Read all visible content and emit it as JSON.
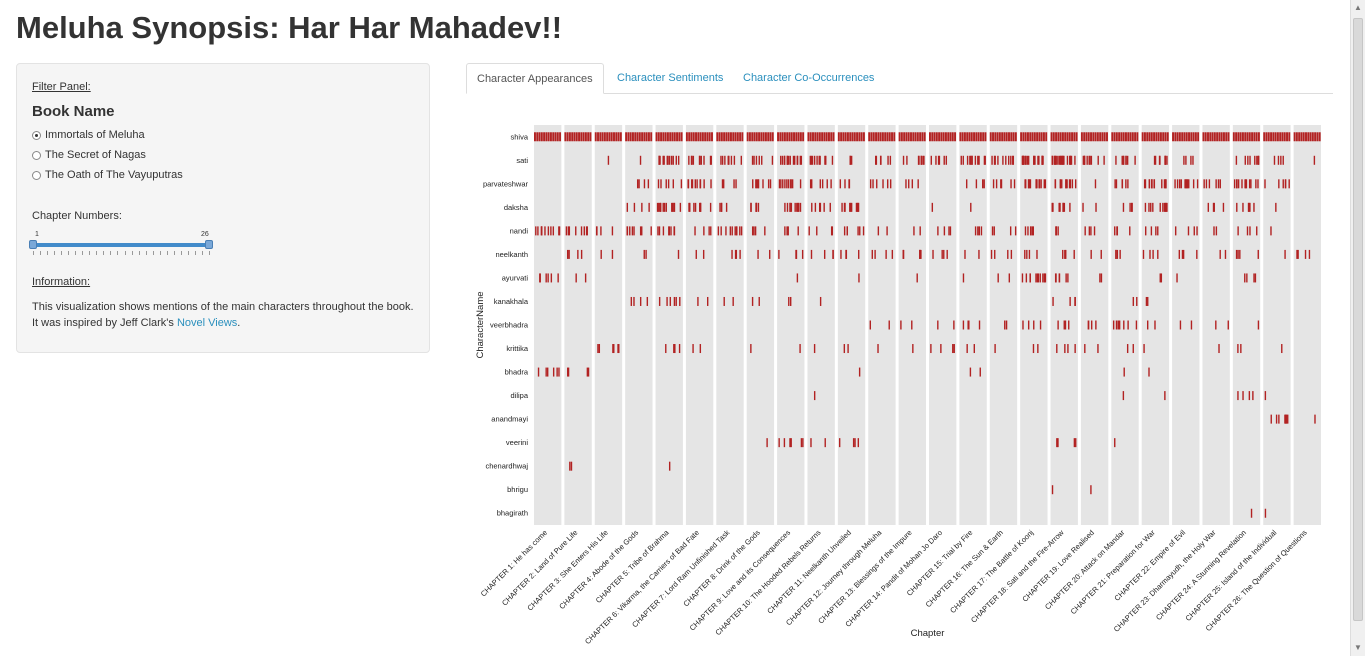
{
  "title": "Meluha Synopsis: Har Har Mahadev!!",
  "panel": {
    "filter_label": "Filter Panel:",
    "book_heading": "Book Name",
    "books": [
      "Immortals of Meluha",
      "The Secret of Nagas",
      "The Oath of The Vayuputras"
    ],
    "selected_book": 0,
    "chapter_label": "Chapter Numbers:",
    "slider_min": "1",
    "slider_max": "26",
    "info_label": "Information:",
    "info_text": "This visualization shows mentions of the main characters throughout the book. It was inspired by Jeff Clark's ",
    "info_link": "Novel Views",
    "info_end": "."
  },
  "tabs": [
    "Character Appearances",
    "Character Sentiments",
    "Character Co-Occurrences"
  ],
  "active_tab": 0,
  "colors": {
    "mark": "#b22222",
    "panel_bg": "#e5e5e5",
    "accent": "#2a8fbd"
  },
  "chart_data": {
    "type": "heatmap",
    "xlabel": "Chapter",
    "ylabel": "CharacterName",
    "characters": [
      "shiva",
      "sati",
      "parvateshwar",
      "daksha",
      "nandi",
      "neelkanth",
      "ayurvati",
      "kanakhala",
      "veerbhadra",
      "krittika",
      "bhadra",
      "dilipa",
      "anandmayi",
      "veerini",
      "chenardhwaj",
      "bhrigu",
      "bhagirath"
    ],
    "chapters": [
      "CHAPTER 1: He has come",
      "CHAPTER 2: Land of Pure Life",
      "CHAPTER 3: She Enters His Life",
      "CHAPTER 4: Abode of the Gods",
      "CHAPTER 5: Tribe of Brahma",
      "CHAPTER 6: Vikarma, the Carriers of Bad Fate",
      "CHAPTER 7: Lord Ram Unfinished Task",
      "CHAPTER 8: Drink of the Gods",
      "CHAPTER 9: Love and its Consequences",
      "CHAPTER 10: The Hooded Rebels Returns",
      "CHAPTER 11: Neelkanth Unveiled",
      "CHAPTER 12: Journey through Meluha",
      "CHAPTER 13: Blessings of the Impure",
      "CHAPTER 14: Pandit of Mohan Jo Daro",
      "CHAPTER 15: Trial by Fire",
      "CHAPTER 16: The Sun & Earth",
      "CHAPTER 17: The Battle of Koonj",
      "CHAPTER 18: Sati and the Fire-Arrow",
      "CHAPTER 19: Love Realised",
      "CHAPTER 20: Attack on Mandar",
      "CHAPTER 21: Preparation for War",
      "CHAPTER 22: Empire of Evil",
      "CHAPTER 23: Dharmayudh, the Holy War",
      "CHAPTER 24: A Stunning Revelation",
      "CHAPTER 25: Island of the Individual",
      "CHAPTER 26: The Question of Questions"
    ],
    "mentions": {
      "shiva": [
        [
          0,
          30,
          "dense"
        ],
        [
          1,
          22,
          "dense"
        ],
        [
          2,
          20,
          "dense"
        ],
        [
          3,
          18,
          "dense"
        ],
        [
          4,
          18,
          "dense"
        ],
        [
          5,
          25,
          "dense"
        ],
        [
          6,
          20,
          "dense"
        ],
        [
          7,
          12,
          "dense"
        ],
        [
          8,
          18,
          "dense"
        ],
        [
          9,
          14,
          "dense"
        ],
        [
          10,
          10,
          "dense"
        ],
        [
          11,
          20,
          "dense"
        ],
        [
          12,
          18,
          "dense"
        ],
        [
          13,
          14,
          "dense"
        ],
        [
          14,
          18,
          "dense"
        ],
        [
          15,
          12,
          "dense"
        ],
        [
          16,
          20,
          "dense"
        ],
        [
          17,
          22,
          "dense"
        ],
        [
          18,
          16,
          "dense"
        ],
        [
          19,
          18,
          "dense"
        ],
        [
          20,
          14,
          "dense"
        ],
        [
          21,
          20,
          "dense"
        ],
        [
          22,
          16,
          "dense"
        ],
        [
          23,
          12,
          "dense"
        ],
        [
          24,
          8,
          "dense"
        ],
        [
          25,
          18,
          "dense"
        ]
      ],
      "sati": [
        [
          2,
          1
        ],
        [
          3,
          1
        ],
        [
          4,
          12
        ],
        [
          5,
          10
        ],
        [
          6,
          8
        ],
        [
          7,
          6
        ],
        [
          8,
          14
        ],
        [
          9,
          10
        ],
        [
          10,
          3
        ],
        [
          11,
          6
        ],
        [
          12,
          8
        ],
        [
          13,
          6
        ],
        [
          14,
          12
        ],
        [
          15,
          10
        ],
        [
          16,
          18
        ],
        [
          17,
          20
        ],
        [
          18,
          10
        ],
        [
          19,
          8
        ],
        [
          20,
          8
        ],
        [
          21,
          4
        ],
        [
          23,
          8
        ],
        [
          24,
          4
        ],
        [
          25,
          1
        ]
      ],
      "parvateshwar": [
        [
          3,
          4
        ],
        [
          4,
          6
        ],
        [
          5,
          10
        ],
        [
          6,
          4
        ],
        [
          7,
          8
        ],
        [
          8,
          10
        ],
        [
          9,
          6
        ],
        [
          10,
          4
        ],
        [
          11,
          6
        ],
        [
          12,
          4
        ],
        [
          14,
          4
        ],
        [
          15,
          6
        ],
        [
          16,
          14
        ],
        [
          17,
          12
        ],
        [
          18,
          1
        ],
        [
          19,
          6
        ],
        [
          20,
          14
        ],
        [
          21,
          12
        ],
        [
          22,
          6
        ],
        [
          23,
          12
        ],
        [
          24,
          6
        ]
      ],
      "daksha": [
        [
          3,
          4
        ],
        [
          4,
          12
        ],
        [
          5,
          8
        ],
        [
          6,
          4
        ],
        [
          7,
          6
        ],
        [
          8,
          10
        ],
        [
          9,
          6
        ],
        [
          10,
          10
        ],
        [
          13,
          1
        ],
        [
          14,
          1
        ],
        [
          17,
          8
        ],
        [
          18,
          2
        ],
        [
          19,
          4
        ],
        [
          20,
          10
        ],
        [
          22,
          4
        ],
        [
          23,
          6
        ],
        [
          24,
          1
        ]
      ],
      "nandi": [
        [
          0,
          12
        ],
        [
          1,
          8
        ],
        [
          2,
          4
        ],
        [
          3,
          8
        ],
        [
          4,
          8
        ],
        [
          5,
          4
        ],
        [
          6,
          10
        ],
        [
          7,
          4
        ],
        [
          8,
          4
        ],
        [
          9,
          4
        ],
        [
          10,
          6
        ],
        [
          11,
          2
        ],
        [
          12,
          2
        ],
        [
          13,
          4
        ],
        [
          14,
          4
        ],
        [
          15,
          4
        ],
        [
          16,
          6
        ],
        [
          17,
          4
        ],
        [
          18,
          4
        ],
        [
          19,
          4
        ],
        [
          20,
          4
        ],
        [
          21,
          4
        ],
        [
          22,
          2
        ],
        [
          23,
          4
        ],
        [
          24,
          1
        ]
      ],
      "neelkanth": [
        [
          1,
          4
        ],
        [
          2,
          2
        ],
        [
          3,
          2
        ],
        [
          4,
          1
        ],
        [
          5,
          2
        ],
        [
          6,
          4
        ],
        [
          7,
          2
        ],
        [
          8,
          4
        ],
        [
          9,
          4
        ],
        [
          10,
          4
        ],
        [
          11,
          4
        ],
        [
          12,
          6
        ],
        [
          13,
          4
        ],
        [
          14,
          2
        ],
        [
          15,
          4
        ],
        [
          16,
          4
        ],
        [
          17,
          4
        ],
        [
          18,
          2
        ],
        [
          19,
          4
        ],
        [
          20,
          4
        ],
        [
          21,
          4
        ],
        [
          22,
          2
        ],
        [
          23,
          4
        ],
        [
          24,
          1
        ],
        [
          25,
          4
        ]
      ],
      "ayurvati": [
        [
          0,
          6
        ],
        [
          1,
          2
        ],
        [
          8,
          1
        ],
        [
          10,
          1
        ],
        [
          12,
          1
        ],
        [
          14,
          1
        ],
        [
          15,
          2
        ],
        [
          16,
          12
        ],
        [
          17,
          6
        ],
        [
          18,
          2
        ],
        [
          20,
          2
        ],
        [
          21,
          1
        ],
        [
          23,
          4
        ]
      ],
      "kanakhala": [
        [
          3,
          4
        ],
        [
          4,
          6
        ],
        [
          5,
          2
        ],
        [
          6,
          2
        ],
        [
          7,
          2
        ],
        [
          8,
          2
        ],
        [
          9,
          1
        ],
        [
          17,
          4
        ],
        [
          19,
          2
        ],
        [
          20,
          2
        ]
      ],
      "veerbhadra": [
        [
          11,
          2
        ],
        [
          12,
          2
        ],
        [
          13,
          2
        ],
        [
          14,
          4
        ],
        [
          15,
          2
        ],
        [
          16,
          4
        ],
        [
          17,
          4
        ],
        [
          18,
          4
        ],
        [
          19,
          8
        ],
        [
          20,
          2
        ],
        [
          21,
          2
        ],
        [
          22,
          2
        ],
        [
          23,
          1
        ]
      ],
      "krittika": [
        [
          2,
          6
        ],
        [
          4,
          4
        ],
        [
          5,
          2
        ],
        [
          7,
          1
        ],
        [
          8,
          1
        ],
        [
          9,
          1
        ],
        [
          10,
          2
        ],
        [
          11,
          1
        ],
        [
          12,
          1
        ],
        [
          13,
          4
        ],
        [
          14,
          2
        ],
        [
          15,
          1
        ],
        [
          16,
          2
        ],
        [
          17,
          4
        ],
        [
          18,
          2
        ],
        [
          19,
          2
        ],
        [
          20,
          1
        ],
        [
          22,
          1
        ],
        [
          23,
          2
        ],
        [
          24,
          1
        ]
      ],
      "bhadra": [
        [
          0,
          6
        ],
        [
          1,
          4
        ],
        [
          10,
          1
        ],
        [
          14,
          2
        ],
        [
          19,
          1
        ],
        [
          20,
          1
        ]
      ],
      "dilipa": [
        [
          9,
          1
        ],
        [
          19,
          1
        ],
        [
          20,
          1
        ],
        [
          23,
          4
        ],
        [
          24,
          1
        ]
      ],
      "anandmayi": [
        [
          24,
          8
        ],
        [
          25,
          1
        ]
      ],
      "veerini": [
        [
          7,
          1
        ],
        [
          8,
          6
        ],
        [
          9,
          2
        ],
        [
          10,
          4
        ],
        [
          17,
          4
        ],
        [
          19,
          1
        ]
      ],
      "chenardhwaj": [
        [
          1,
          2
        ],
        [
          4,
          1
        ]
      ],
      "bhrigu": [
        [
          17,
          1
        ],
        [
          18,
          1
        ]
      ],
      "bhagirath": [
        [
          23,
          1
        ],
        [
          24,
          1
        ]
      ]
    }
  }
}
